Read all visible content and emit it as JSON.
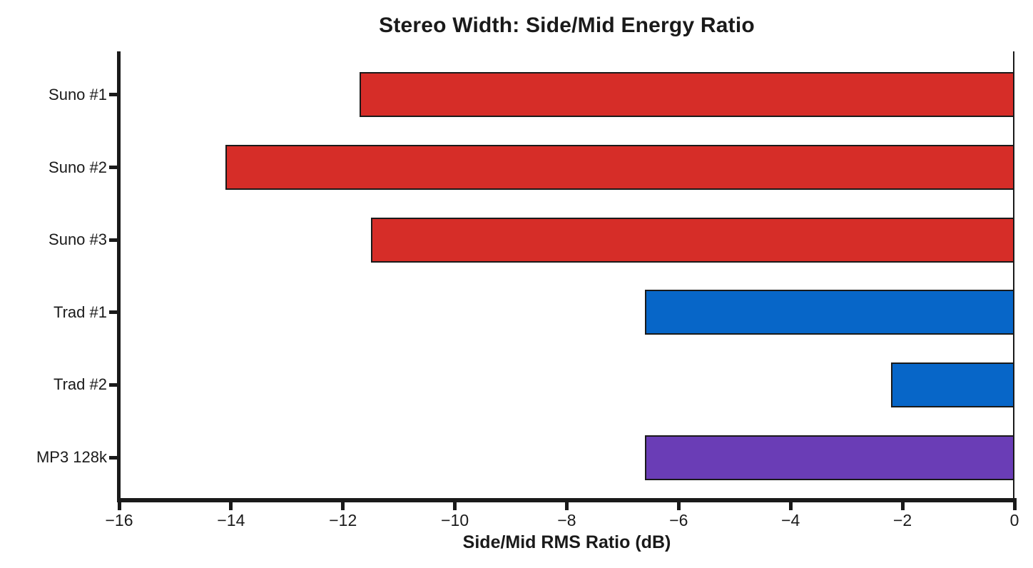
{
  "chart_data": {
    "type": "bar",
    "orientation": "horizontal",
    "title": "Stereo Width: Side/Mid Energy Ratio",
    "xlabel": "Side/Mid RMS Ratio (dB)",
    "ylabel": "",
    "categories": [
      "Suno #1",
      "Suno #2",
      "Suno #3",
      "Trad #1",
      "Trad #2",
      "MP3 128k"
    ],
    "values": [
      -11.7,
      -14.1,
      -11.5,
      -6.6,
      -2.2,
      -6.6
    ],
    "unit": "dB",
    "bar_colors": [
      "#d62d28",
      "#d62d28",
      "#d62d28",
      "#0766c8",
      "#0766c8",
      "#6a3db6"
    ],
    "bar_edge_color": "#1a1a1a",
    "ink_color": "#1a1a1a",
    "background_color": "#ffffff",
    "xlim": [
      -16,
      0
    ],
    "xticks": [
      -16,
      -14,
      -12,
      -10,
      -8,
      -6,
      -4,
      -2,
      0
    ],
    "xtick_labels": [
      "−16",
      "−14",
      "−12",
      "−10",
      "−8",
      "−6",
      "−4",
      "−2",
      "0"
    ],
    "grid": false,
    "legend": null
  }
}
